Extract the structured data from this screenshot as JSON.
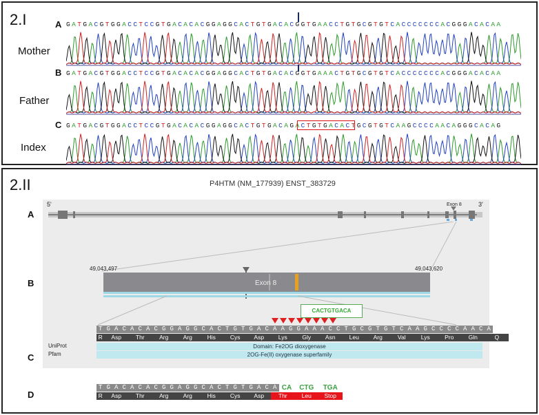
{
  "panel1": {
    "label": "2.I",
    "rows": [
      {
        "letter": "A",
        "name": "Mother",
        "seq": "GATGACGTGGACCTCCGTGACACACGGAGGCACTGTGACACGGTGAACCTGTGCGTGTCACCCCCCCACGGGACACAA"
      },
      {
        "letter": "B",
        "name": "Father",
        "seq": "GATGACGTGGACCTCCGTGACACACGGAGGCACTGTGACACGGTGAAACTGTGCGTGTCACCCCCCCACGGGACACAA"
      },
      {
        "letter": "C",
        "name": "Index",
        "seq": "GATGACGTGGACCTCCGTGACACACGGAGGCACTGTGACAGACTGTGACACTGCGTGTCAAGCCCCAACAGGGCACAG"
      }
    ]
  },
  "panel2": {
    "label": "2.II",
    "title": "P4HTM (NM_177939) ENST_383729",
    "trackA": {
      "letter": "A",
      "five": "5'",
      "three": "3'",
      "exon_label": "Exon 8"
    },
    "trackB": {
      "letter": "B",
      "start": "49,043,497",
      "end": "49,043,620",
      "exon_label": "Exon 8"
    },
    "trackC": {
      "letter": "C",
      "callout": "CACTGTGACA",
      "nts": [
        "T",
        "G",
        "A",
        "C",
        "A",
        "C",
        "A",
        "C",
        "G",
        "G",
        "A",
        "G",
        "G",
        "C",
        "A",
        "C",
        "T",
        "G",
        "T",
        "G",
        "A",
        "C",
        "A",
        "A",
        "G",
        "G",
        "A",
        "A",
        "A",
        "C",
        "C",
        "T",
        "G",
        "C",
        "G",
        "T",
        "G",
        "T",
        "C",
        "A",
        "A",
        "G",
        "C",
        "C",
        "C",
        "C",
        "A",
        "A",
        "C",
        "A"
      ],
      "aas": [
        "R",
        "Asp",
        "Thr",
        "Arg",
        "Arg",
        "His",
        "Cys",
        "Asp",
        "Lys",
        "Gly",
        "Asn",
        "Leu",
        "Arg",
        "Val",
        "Lys",
        "Pro",
        "Gln",
        "Q"
      ],
      "uniprot_label": "UniProt",
      "uniprot_text": "Domain: Fe2OG dioxygenase",
      "pfam_label": "Pfam",
      "pfam_text": "2OG-Fe(II) oxygenase superfamily"
    },
    "trackD": {
      "letter": "D",
      "nts": [
        "T",
        "G",
        "A",
        "C",
        "A",
        "C",
        "A",
        "C",
        "G",
        "G",
        "A",
        "G",
        "G",
        "C",
        "A",
        "C",
        "T",
        "G",
        "T",
        "G",
        "A",
        "C",
        "A"
      ],
      "green_nts": [
        "CA",
        "CTG",
        "TGA"
      ],
      "aas": [
        "R",
        "Asp",
        "Thr",
        "Arg",
        "Arg",
        "His",
        "Cys",
        "Asp"
      ],
      "mut_aas": [
        "Thr",
        "Leu",
        "Stop"
      ]
    }
  },
  "colors": {
    "A": "#2a9a2a",
    "C": "#2040c0",
    "G": "#111111",
    "T": "#d02020",
    "highlight": "#d11111",
    "stop_red": "#e8141c"
  }
}
